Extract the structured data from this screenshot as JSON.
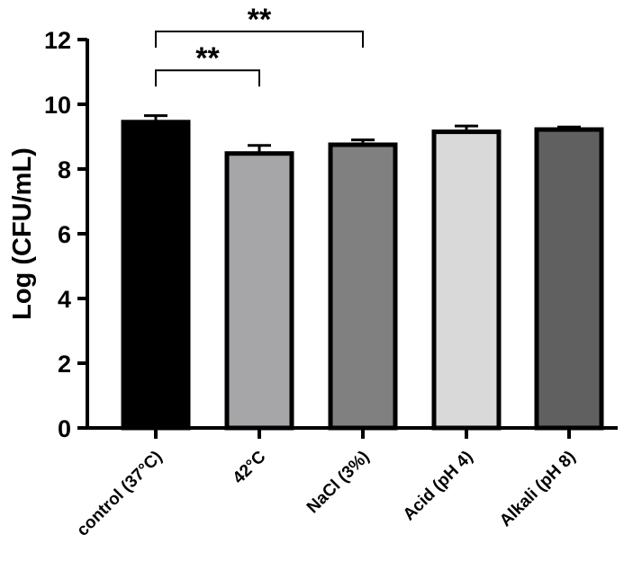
{
  "chart_data": {
    "type": "bar",
    "title": "",
    "xlabel": "",
    "ylabel": "Log (CFU/mL)",
    "ylim": [
      0,
      12
    ],
    "yticks": [
      0,
      2,
      4,
      6,
      8,
      10,
      12
    ],
    "ytick_labels": [
      "0",
      "2",
      "4",
      "6",
      "8",
      "10",
      "12"
    ],
    "categories": [
      "control (37°C)",
      "42°C",
      "NaCl (3%)",
      "Acid (pH 4)",
      "Alkali (pH 8)"
    ],
    "values": [
      9.45,
      8.48,
      8.75,
      9.15,
      9.22
    ],
    "errors": [
      0.2,
      0.25,
      0.15,
      0.18,
      0.08
    ],
    "colors": [
      "#000000",
      "#a6a6a9",
      "#808080",
      "#d9d9d9",
      "#606060"
    ],
    "annotations": [
      {
        "from": 0,
        "to": 1,
        "label": "**",
        "y_low": 10.55,
        "y_high": 11.05
      },
      {
        "from": 0,
        "to": 2,
        "label": "**",
        "y_low": 11.75,
        "y_high": 12.25
      }
    ]
  }
}
